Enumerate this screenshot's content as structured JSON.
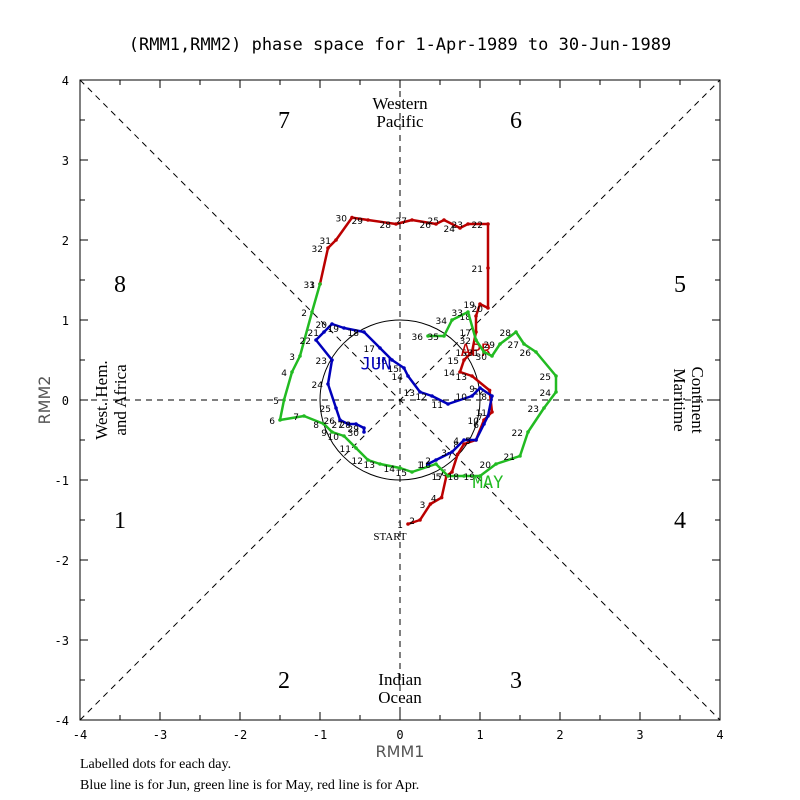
{
  "chart_data": {
    "type": "line",
    "title": "(RMM1,RMM2) phase space for  1-Apr-1989 to 30-Jun-1989",
    "xlabel": "RMM1",
    "ylabel": "RMM2",
    "xlim": [
      -4,
      4
    ],
    "ylim": [
      -4,
      4
    ],
    "xticks": [
      "-4",
      "-3",
      "-2",
      "-1",
      "0",
      "1",
      "2",
      "3",
      "4"
    ],
    "yticks": [
      "-4",
      "-3",
      "-2",
      "-1",
      "0",
      "1",
      "2",
      "3",
      "4"
    ],
    "unit_circle_radius": 1,
    "phases": [
      {
        "label": "1",
        "x": -3.5,
        "y": -1.5
      },
      {
        "label": "2",
        "x": -1.45,
        "y": -3.5
      },
      {
        "label": "3",
        "x": 1.45,
        "y": -3.5
      },
      {
        "label": "4",
        "x": 3.5,
        "y": -1.5
      },
      {
        "label": "5",
        "x": 3.5,
        "y": 1.45
      },
      {
        "label": "6",
        "x": 1.45,
        "y": 3.5
      },
      {
        "label": "7",
        "x": -1.45,
        "y": 3.5
      },
      {
        "label": "8",
        "x": -3.5,
        "y": 1.45
      }
    ],
    "regions": {
      "top": [
        "Western",
        "Pacific"
      ],
      "bottom": [
        "Indian",
        "Ocean"
      ],
      "left": [
        "West. Hem.",
        "and Africa"
      ],
      "right": [
        "Maritime",
        "Continent"
      ]
    },
    "start_label": "START",
    "footnotes": [
      "Labelled dots for each day.",
      "Blue line is for Jun, green line is for May, red line is for Apr."
    ],
    "series": [
      {
        "name": "APR",
        "color": "#bb0000",
        "label_pos": [
          0.95,
          0.55
        ],
        "points": [
          [
            0.1,
            -1.55
          ],
          [
            0.25,
            -1.5
          ],
          [
            0.38,
            -1.3
          ],
          [
            0.52,
            -1.22
          ],
          [
            0.58,
            -0.95
          ],
          [
            0.65,
            -0.9
          ],
          [
            0.72,
            -0.68
          ],
          [
            0.8,
            -0.55
          ],
          [
            0.95,
            -0.5
          ],
          [
            1.05,
            -0.25
          ],
          [
            1.15,
            -0.15
          ],
          [
            1.12,
            0.12
          ],
          [
            0.9,
            0.3
          ],
          [
            0.75,
            0.35
          ],
          [
            0.8,
            0.5
          ],
          [
            0.9,
            0.6
          ],
          [
            0.95,
            0.85
          ],
          [
            0.95,
            1.05
          ],
          [
            1.0,
            1.2
          ],
          [
            1.1,
            1.15
          ],
          [
            1.1,
            1.65
          ],
          [
            1.1,
            2.2
          ],
          [
            0.85,
            2.2
          ],
          [
            0.75,
            2.15
          ],
          [
            0.55,
            2.25
          ],
          [
            0.45,
            2.2
          ],
          [
            0.15,
            2.25
          ],
          [
            -0.05,
            2.2
          ],
          [
            -0.4,
            2.25
          ],
          [
            -0.6,
            2.28
          ],
          [
            -0.8,
            2.0
          ],
          [
            -0.9,
            1.9
          ],
          [
            -1.0,
            1.45
          ]
        ]
      },
      {
        "name": "MAY",
        "color": "#22bb22",
        "label_pos": [
          1.1,
          -1.1
        ],
        "points": [
          [
            -1.0,
            1.45
          ],
          [
            -1.1,
            1.1
          ],
          [
            -1.25,
            0.55
          ],
          [
            -1.35,
            0.35
          ],
          [
            -1.45,
            0.0
          ],
          [
            -1.5,
            -0.25
          ],
          [
            -1.2,
            -0.2
          ],
          [
            -0.95,
            -0.3
          ],
          [
            -0.85,
            -0.4
          ],
          [
            -0.7,
            -0.45
          ],
          [
            -0.55,
            -0.6
          ],
          [
            -0.4,
            -0.75
          ],
          [
            -0.25,
            -0.8
          ],
          [
            0.0,
            -0.85
          ],
          [
            0.15,
            -0.9
          ],
          [
            0.45,
            -0.8
          ],
          [
            0.6,
            -0.95
          ],
          [
            0.8,
            -0.95
          ],
          [
            1.0,
            -0.95
          ],
          [
            1.2,
            -0.8
          ],
          [
            1.5,
            -0.7
          ],
          [
            1.6,
            -0.4
          ],
          [
            1.8,
            -0.1
          ],
          [
            1.95,
            0.1
          ],
          [
            1.95,
            0.3
          ],
          [
            1.7,
            0.6
          ],
          [
            1.55,
            0.7
          ],
          [
            1.45,
            0.85
          ],
          [
            1.25,
            0.7
          ],
          [
            1.15,
            0.55
          ],
          [
            1.05,
            0.6
          ],
          [
            0.95,
            0.75
          ],
          [
            0.85,
            1.1
          ],
          [
            0.65,
            1.0
          ],
          [
            0.55,
            0.8
          ],
          [
            0.35,
            0.8
          ]
        ]
      },
      {
        "name": "JUN",
        "color": "#0000bb",
        "label_pos": [
          -0.3,
          0.38
        ],
        "points": [
          [
            0.35,
            -0.8
          ],
          [
            0.45,
            -0.75
          ],
          [
            0.65,
            -0.65
          ],
          [
            0.8,
            -0.5
          ],
          [
            0.95,
            -0.5
          ],
          [
            1.05,
            -0.3
          ],
          [
            1.1,
            -0.2
          ],
          [
            1.15,
            0.05
          ],
          [
            1.0,
            0.15
          ],
          [
            0.9,
            0.05
          ],
          [
            0.6,
            -0.05
          ],
          [
            0.4,
            0.05
          ],
          [
            0.25,
            0.1
          ],
          [
            0.1,
            0.3
          ],
          [
            0.05,
            0.4
          ],
          [
            -0.1,
            0.5
          ],
          [
            -0.25,
            0.65
          ],
          [
            -0.45,
            0.85
          ],
          [
            -0.7,
            0.9
          ],
          [
            -0.85,
            0.95
          ],
          [
            -0.95,
            0.85
          ],
          [
            -1.05,
            0.75
          ],
          [
            -0.85,
            0.5
          ],
          [
            -0.9,
            0.2
          ],
          [
            -0.8,
            -0.1
          ],
          [
            -0.75,
            -0.25
          ],
          [
            -0.65,
            -0.3
          ],
          [
            -0.55,
            -0.3
          ],
          [
            -0.45,
            -0.35
          ],
          [
            -0.45,
            -0.4
          ]
        ]
      }
    ]
  }
}
